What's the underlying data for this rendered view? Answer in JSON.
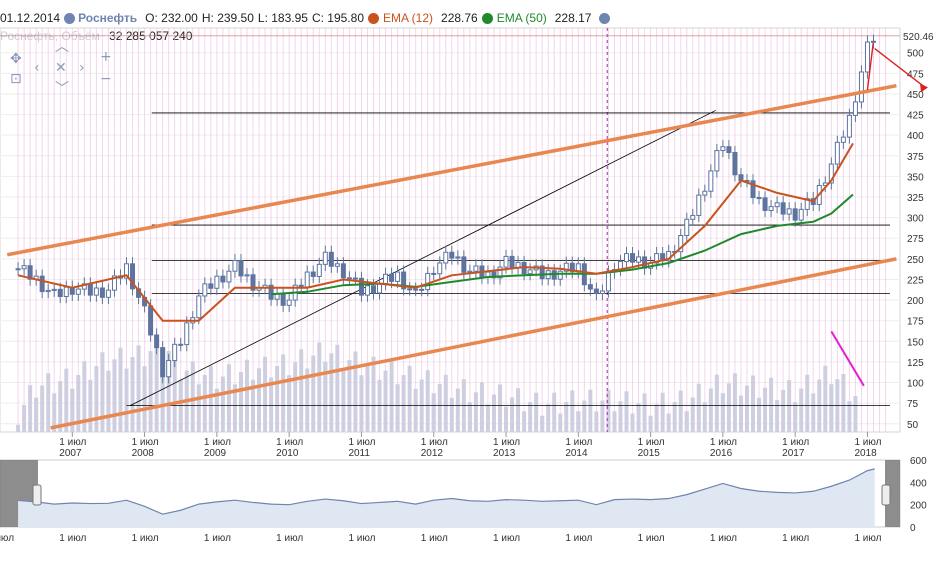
{
  "legend": {
    "date": "01.12.2014",
    "instrument": "Роснефть",
    "open": "O: 232.00",
    "high": "H: 239.50",
    "low": "L: 183.95",
    "close": "C: 195.80",
    "ema12_name": "EMA (12)",
    "ema12_value": "228.76",
    "ema50_name": "EMA (50)",
    "ema50_value": "228.17",
    "volume_prefix": "Роснефть, Объём",
    "volume_value": "32 285 057 240"
  },
  "last_price_label": "520.46",
  "colors": {
    "instrument": "#6f84b0",
    "ema12": "#c8531e",
    "ema50": "#1f8a2c",
    "channel": "#e8874f",
    "trend_lines": "#000000",
    "candles": "#5f73a0",
    "volume_bars": "#c9d3e0",
    "highlight_lines": "#f0b8e4",
    "arrow": "#e02020",
    "magenta_line": "#e020d0"
  },
  "icons": [
    "pan-icon",
    "zoom-up-icon",
    "zoom-left-icon",
    "reset-zoom-icon",
    "zoom-right-icon",
    "zoom-down-icon",
    "zoom-in-icon",
    "zoom-out-icon",
    "select-area-icon"
  ],
  "chart_data": {
    "type": "candlestick",
    "frequency": "monthly",
    "y_axis": {
      "ticks": [
        50,
        75,
        100,
        125,
        150,
        175,
        200,
        225,
        250,
        275,
        300,
        325,
        350,
        375,
        400,
        425,
        450,
        475,
        500
      ],
      "range": [
        40,
        530
      ]
    },
    "x_axis": {
      "tick_label": "1 июл",
      "years": [
        "2007",
        "2008",
        "2009",
        "2010",
        "2011",
        "2012",
        "2013",
        "2014",
        "2015",
        "2016",
        "2017",
        "2018"
      ]
    },
    "price_close": [
      [
        2006.75,
        238
      ],
      [
        2007.0,
        225
      ],
      [
        2007.25,
        205
      ],
      [
        2007.5,
        215
      ],
      [
        2007.75,
        210
      ],
      [
        2008.0,
        212
      ],
      [
        2008.25,
        240
      ],
      [
        2008.5,
        185
      ],
      [
        2008.75,
        115
      ],
      [
        2009.0,
        150
      ],
      [
        2009.25,
        205
      ],
      [
        2009.5,
        225
      ],
      [
        2009.75,
        240
      ],
      [
        2010.0,
        220
      ],
      [
        2010.25,
        205
      ],
      [
        2010.5,
        200
      ],
      [
        2010.75,
        230
      ],
      [
        2011.0,
        250
      ],
      [
        2011.25,
        235
      ],
      [
        2011.5,
        210
      ],
      [
        2011.75,
        220
      ],
      [
        2012.0,
        230
      ],
      [
        2012.25,
        205
      ],
      [
        2012.5,
        240
      ],
      [
        2012.75,
        255
      ],
      [
        2013.0,
        235
      ],
      [
        2013.25,
        230
      ],
      [
        2013.5,
        245
      ],
      [
        2013.75,
        240
      ],
      [
        2014.0,
        230
      ],
      [
        2014.25,
        235
      ],
      [
        2014.5,
        240
      ],
      [
        2014.75,
        200
      ],
      [
        2015.0,
        245
      ],
      [
        2015.25,
        250
      ],
      [
        2015.5,
        245
      ],
      [
        2015.75,
        255
      ],
      [
        2016.0,
        290
      ],
      [
        2016.25,
        340
      ],
      [
        2016.5,
        390
      ],
      [
        2016.75,
        345
      ],
      [
        2017.0,
        320
      ],
      [
        2017.25,
        310
      ],
      [
        2017.5,
        305
      ],
      [
        2017.75,
        320
      ],
      [
        2018.0,
        365
      ],
      [
        2018.25,
        420
      ],
      [
        2018.5,
        505
      ],
      [
        2018.6,
        520.46
      ]
    ],
    "ema12": [
      [
        2006.75,
        230
      ],
      [
        2007.5,
        215
      ],
      [
        2008.25,
        230
      ],
      [
        2008.75,
        175
      ],
      [
        2009.25,
        175
      ],
      [
        2009.75,
        215
      ],
      [
        2010.25,
        215
      ],
      [
        2010.75,
        215
      ],
      [
        2011.25,
        225
      ],
      [
        2011.75,
        220
      ],
      [
        2012.25,
        215
      ],
      [
        2012.75,
        230
      ],
      [
        2013.25,
        235
      ],
      [
        2013.75,
        240
      ],
      [
        2014.25,
        238
      ],
      [
        2014.75,
        232
      ],
      [
        2015.25,
        240
      ],
      [
        2015.75,
        250
      ],
      [
        2016.25,
        290
      ],
      [
        2016.75,
        345
      ],
      [
        2017.25,
        330
      ],
      [
        2017.75,
        320
      ],
      [
        2018.0,
        345
      ],
      [
        2018.3,
        390
      ]
    ],
    "ema50": [
      [
        2010.25,
        207
      ],
      [
        2010.75,
        210
      ],
      [
        2011.25,
        218
      ],
      [
        2011.75,
        220
      ],
      [
        2012.25,
        216
      ],
      [
        2012.75,
        222
      ],
      [
        2013.25,
        228
      ],
      [
        2013.75,
        230
      ],
      [
        2014.25,
        232
      ],
      [
        2014.75,
        232
      ],
      [
        2015.25,
        237
      ],
      [
        2015.75,
        245
      ],
      [
        2016.25,
        260
      ],
      [
        2016.75,
        280
      ],
      [
        2017.25,
        290
      ],
      [
        2017.75,
        295
      ],
      [
        2018.0,
        305
      ],
      [
        2018.3,
        328
      ]
    ],
    "volume_scale": [
      50,
      160
    ],
    "volume": [
      [
        2006.75,
        70
      ],
      [
        2007.0,
        100
      ],
      [
        2007.5,
        110
      ],
      [
        2008.0,
        130
      ],
      [
        2008.5,
        135
      ],
      [
        2008.75,
        150
      ],
      [
        2009.0,
        120
      ],
      [
        2009.5,
        110
      ],
      [
        2010.0,
        120
      ],
      [
        2010.5,
        125
      ],
      [
        2011.0,
        140
      ],
      [
        2011.5,
        125
      ],
      [
        2012.0,
        115
      ],
      [
        2012.5,
        105
      ],
      [
        2013.0,
        95
      ],
      [
        2013.5,
        90
      ],
      [
        2014.0,
        80
      ],
      [
        2014.5,
        85
      ],
      [
        2015.0,
        85
      ],
      [
        2015.5,
        80
      ],
      [
        2016.0,
        85
      ],
      [
        2016.5,
        105
      ],
      [
        2017.0,
        100
      ],
      [
        2017.5,
        95
      ],
      [
        2018.0,
        115
      ],
      [
        2018.4,
        85
      ]
    ],
    "navigator_range": [
      0,
      600
    ],
    "navigator_ticks": [
      0,
      200,
      400,
      600
    ],
    "channel_upper": [
      [
        2006.6,
        255
      ],
      [
        2018.9,
        460
      ]
    ],
    "channel_lower": [
      [
        2007.2,
        45
      ],
      [
        2018.9,
        250
      ]
    ],
    "horizontal_levels": [
      427,
      291,
      248,
      208,
      72
    ],
    "trend_line": [
      [
        2008.3,
        72
      ],
      [
        2016.4,
        430
      ]
    ]
  }
}
